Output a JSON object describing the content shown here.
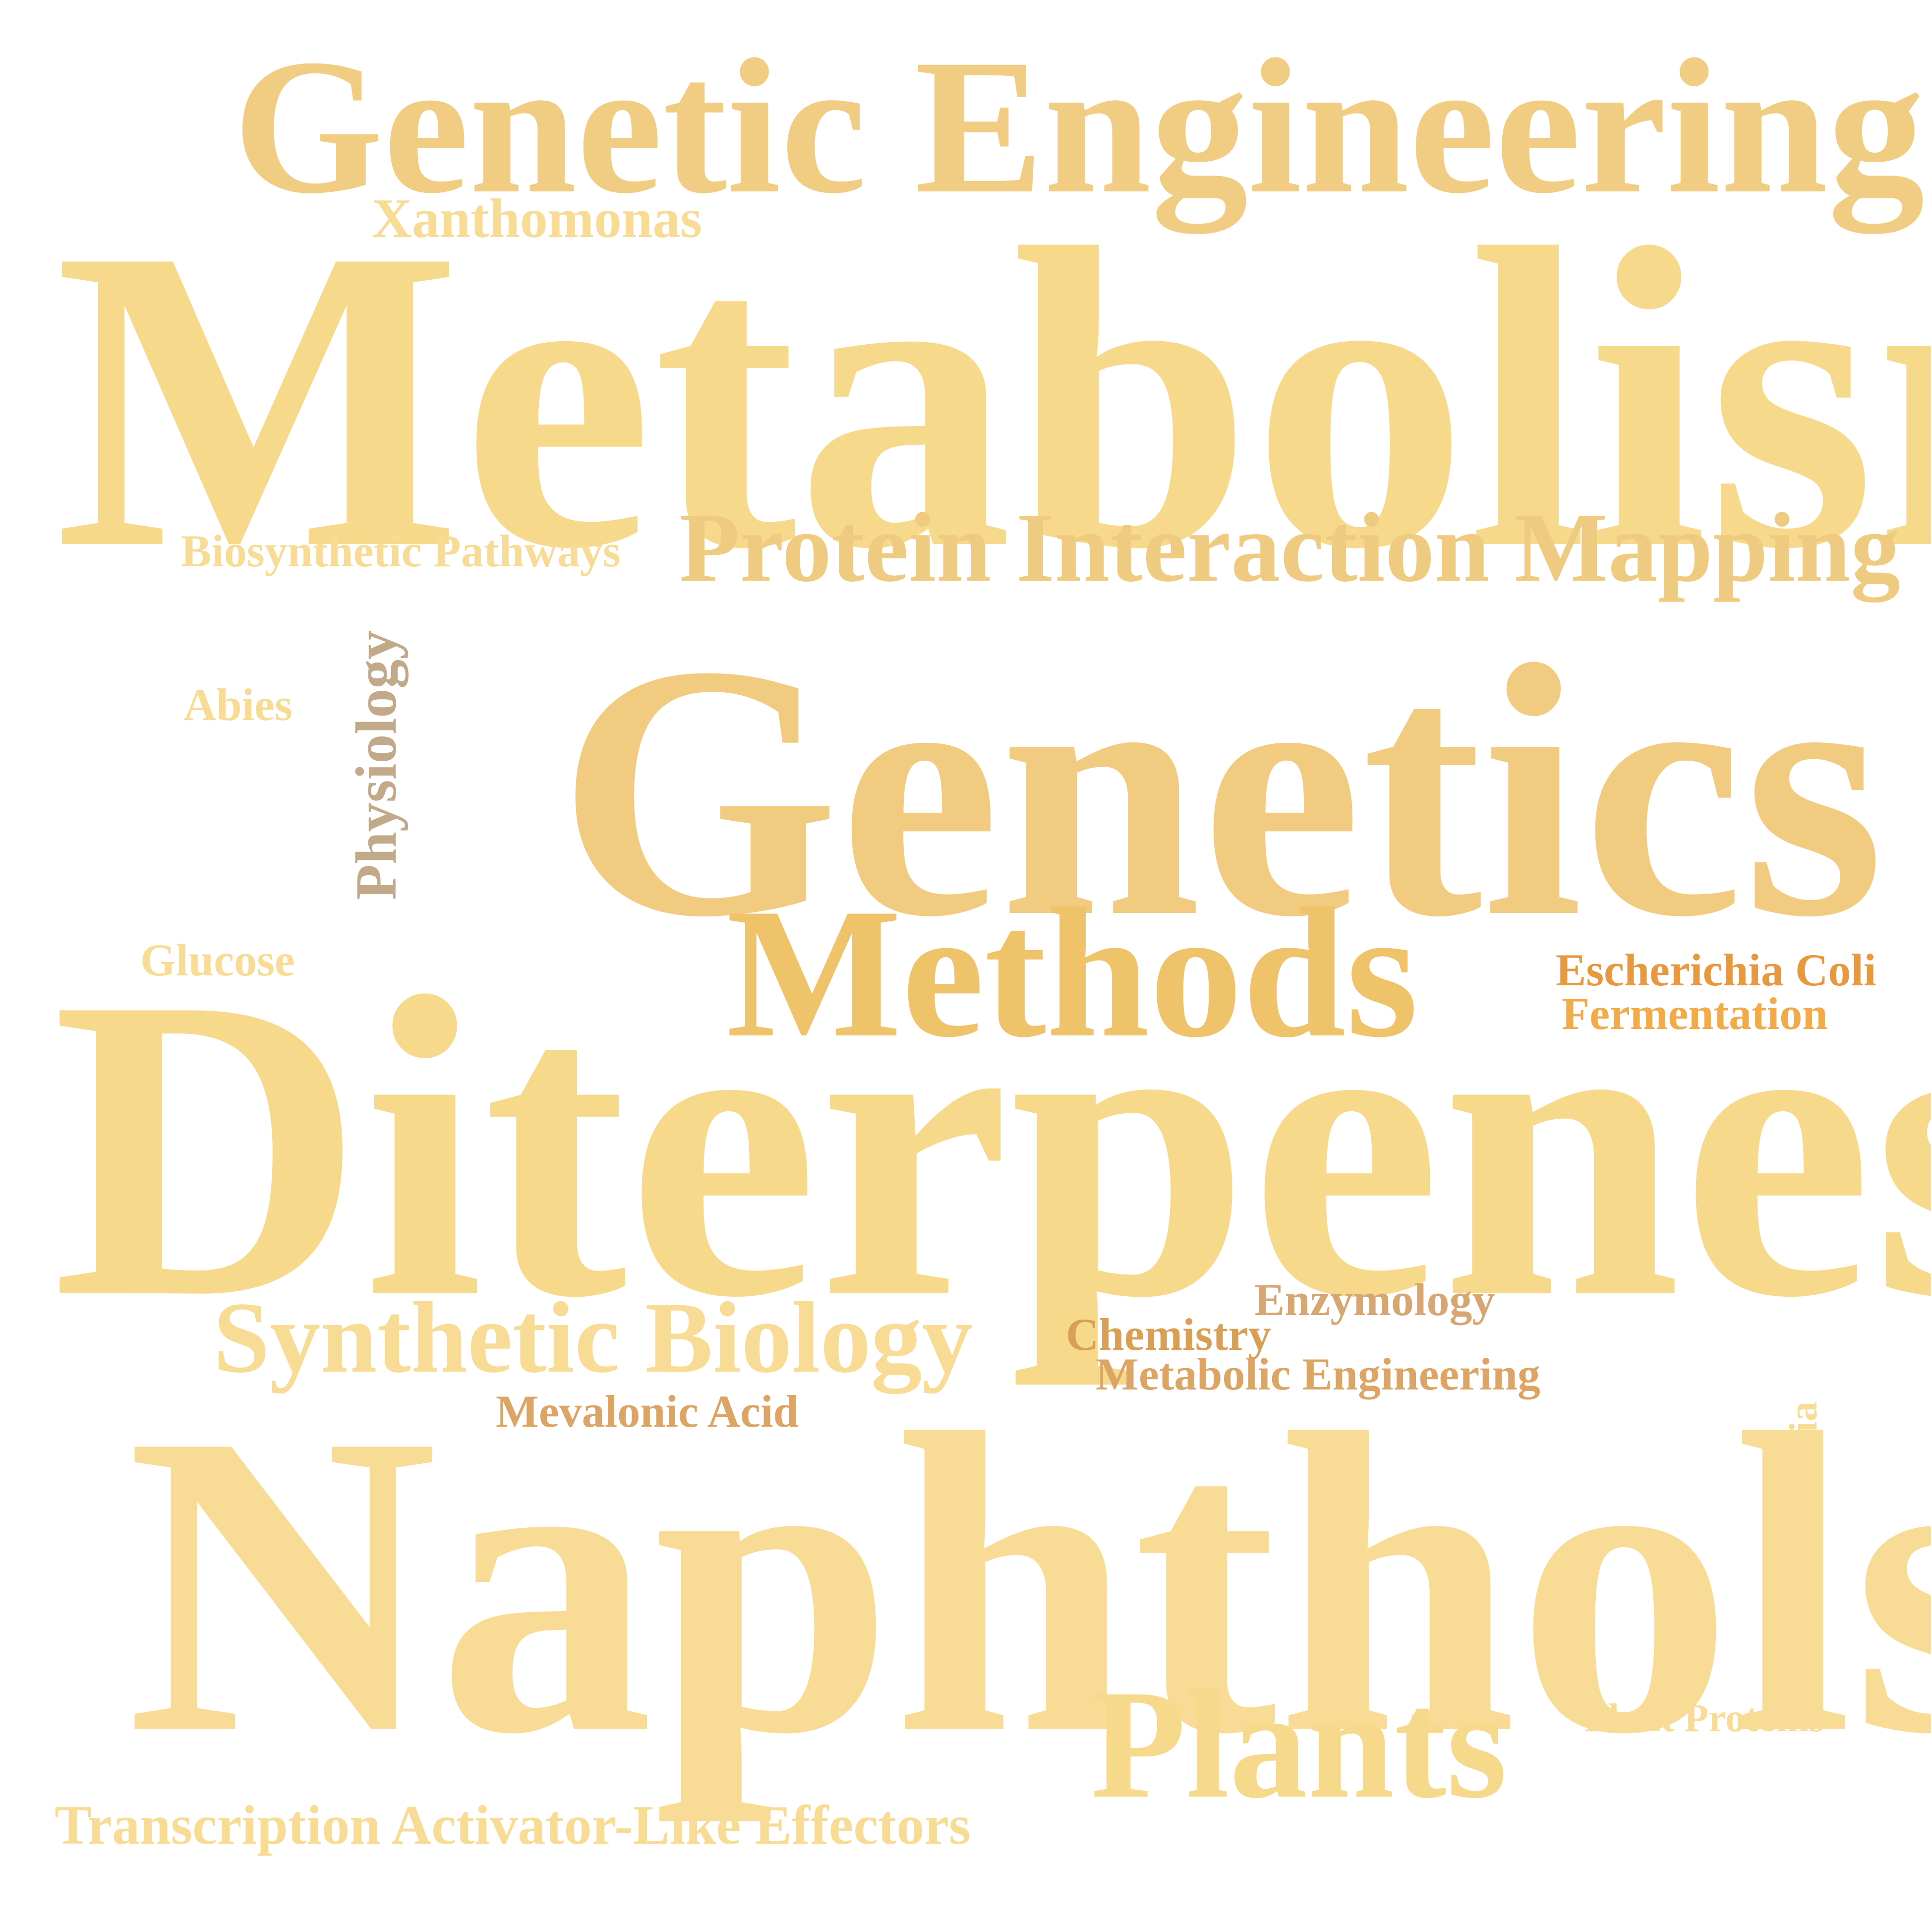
{
  "colors": {
    "background": "#ffffff",
    "gold_main": "#f7d98c",
    "gold_light": "#f8dc95",
    "gold_mid": "#f1cd84",
    "gold_methods": "#efc36a",
    "tan": "#c1a98a",
    "orange_dark": "#e6993f",
    "orange": "#f1ab4a",
    "bronze": "#d89f55",
    "bronze_light": "#dca465",
    "brown_light": "#d6a673"
  },
  "words": [
    {
      "id": "genetic-engineering",
      "text": "Genetic Engineering",
      "color": "#f1cd84",
      "orientation": "horizontal"
    },
    {
      "id": "xanthomonas",
      "text": "Xanthomonas",
      "color": "#f8dc95",
      "orientation": "horizontal"
    },
    {
      "id": "metabolism",
      "text": "Metabolism",
      "color": "#f7d98c",
      "orientation": "horizontal"
    },
    {
      "id": "biosynthetic",
      "text": "Biosynthetic Pathways",
      "color": "#f8dc95",
      "orientation": "horizontal"
    },
    {
      "id": "protein",
      "text": "Protein Interaction Mapping",
      "color": "#efcb82",
      "orientation": "horizontal"
    },
    {
      "id": "physiology",
      "text": "Physiology",
      "color": "#c1a98a",
      "orientation": "vertical"
    },
    {
      "id": "abies",
      "text": "Abies",
      "color": "#f8dc95",
      "orientation": "horizontal"
    },
    {
      "id": "genetics",
      "text": "Genetics",
      "color": "#f1cb7f",
      "orientation": "horizontal"
    },
    {
      "id": "methods",
      "text": "Methods",
      "color": "#efc36a",
      "orientation": "horizontal"
    },
    {
      "id": "glucose",
      "text": "Glucose",
      "color": "#f8dc95",
      "orientation": "horizontal"
    },
    {
      "id": "escherichia",
      "text": "Escherichia Coli",
      "color": "#e6993f",
      "orientation": "horizontal"
    },
    {
      "id": "fermentation",
      "text": "Fermentation",
      "color": "#f1ab4a",
      "orientation": "horizontal"
    },
    {
      "id": "diterpenes",
      "text": "Diterpenes",
      "color": "#f7d98c",
      "orientation": "horizontal"
    },
    {
      "id": "enzymology",
      "text": "Enzymology",
      "color": "#d6a673",
      "orientation": "horizontal"
    },
    {
      "id": "chemistry",
      "text": "Chemistry",
      "color": "#d89f55",
      "orientation": "horizontal"
    },
    {
      "id": "synthetic-biology",
      "text": "Synthetic Biology",
      "color": "#f8dc95",
      "orientation": "horizontal"
    },
    {
      "id": "metabolic-eng",
      "text": "Metabolic Engineering",
      "color": "#dca465",
      "orientation": "horizontal"
    },
    {
      "id": "mevalonic",
      "text": "Mevalonic Acid",
      "color": "#dca465",
      "orientation": "horizontal"
    },
    {
      "id": "salvia",
      "text": "Salvia",
      "color": "#f8dc95",
      "orientation": "vertical"
    },
    {
      "id": "naphthols",
      "text": "Naphthols",
      "color": "#f8dc95",
      "orientation": "horizontal"
    },
    {
      "id": "plant-proteins",
      "text": "Plant Proteins",
      "color": "#f8dc95",
      "orientation": "horizontal"
    },
    {
      "id": "plants",
      "text": "Plants",
      "color": "#f7d98c",
      "orientation": "horizontal"
    },
    {
      "id": "transcription",
      "text": "Transcription Activator-Like Effectors",
      "color": "#f8dc95",
      "orientation": "horizontal"
    }
  ]
}
